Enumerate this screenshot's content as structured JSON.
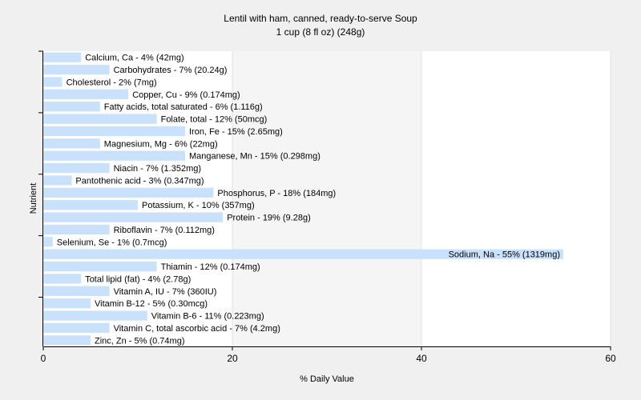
{
  "chart_data": {
    "type": "bar",
    "orientation": "horizontal",
    "title": "Lentil with ham, canned, ready-to-serve Soup",
    "subtitle": "1 cup (8 fl oz) (248g)",
    "xlabel": "% Daily Value",
    "ylabel": "Nutrient",
    "xlim": [
      0,
      60
    ],
    "xticks": [
      "0",
      "20",
      "40",
      "60"
    ],
    "grid": true,
    "legend": "none",
    "bar_color": "#c9e1fb",
    "background_bands": [
      "#ffffff",
      "#f5f5f5"
    ],
    "categories": [
      "Calcium, Ca",
      "Carbohydrates",
      "Cholesterol",
      "Copper, Cu",
      "Fatty acids, total saturated",
      "Folate, total",
      "Iron, Fe",
      "Magnesium, Mg",
      "Manganese, Mn",
      "Niacin",
      "Pantothenic acid",
      "Phosphorus, P",
      "Potassium, K",
      "Protein",
      "Riboflavin",
      "Selenium, Se",
      "Sodium, Na",
      "Thiamin",
      "Total lipid (fat)",
      "Vitamin A, IU",
      "Vitamin B-12",
      "Vitamin B-6",
      "Vitamin C, total ascorbic acid",
      "Zinc, Zn"
    ],
    "values": [
      4,
      7,
      2,
      9,
      6,
      12,
      15,
      6,
      15,
      7,
      3,
      18,
      10,
      19,
      7,
      1,
      55,
      12,
      4,
      7,
      5,
      11,
      7,
      5
    ],
    "labels": [
      "Calcium, Ca - 4% (42mg)",
      "Carbohydrates - 7% (20.24g)",
      "Cholesterol - 2% (7mg)",
      "Copper, Cu - 9% (0.174mg)",
      "Fatty acids, total saturated - 6% (1.116g)",
      "Folate, total - 12% (50mcg)",
      "Iron, Fe - 15% (2.65mg)",
      "Magnesium, Mg - 6% (22mg)",
      "Manganese, Mn - 15% (0.298mg)",
      "Niacin - 7% (1.352mg)",
      "Pantothenic acid - 3% (0.347mg)",
      "Phosphorus, P - 18% (184mg)",
      "Potassium, K - 10% (357mg)",
      "Protein - 19% (9.28g)",
      "Riboflavin - 7% (0.112mg)",
      "Selenium, Se - 1% (0.7mcg)",
      "Sodium, Na - 55% (1319mg)",
      "Thiamin - 12% (0.174mg)",
      "Total lipid (fat) - 4% (2.78g)",
      "Vitamin A, IU - 7% (360IU)",
      "Vitamin B-12 - 5% (0.30mcg)",
      "Vitamin B-6 - 11% (0.223mg)",
      "Vitamin C, total ascorbic acid - 7% (4.2mg)",
      "Zinc, Zn - 5% (0.74mg)"
    ]
  }
}
